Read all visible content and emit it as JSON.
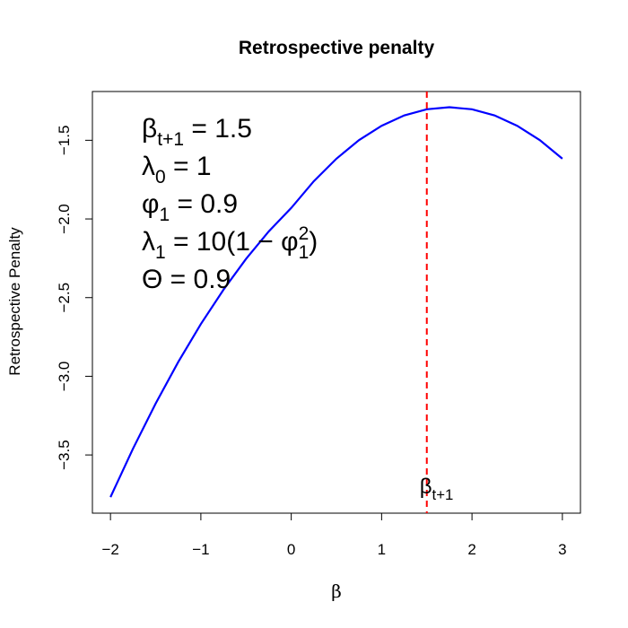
{
  "chart_data": {
    "type": "line",
    "title": "Retrospective penalty",
    "x_label": "β",
    "y_label": "Retrospective Penalty",
    "x": [
      -2,
      -1.75,
      -1.5,
      -1.25,
      -1,
      -0.75,
      -0.5,
      -0.25,
      0,
      0.25,
      0.5,
      0.75,
      1,
      1.25,
      1.5,
      1.75,
      2,
      2.25,
      2.5,
      2.75,
      3
    ],
    "series": [
      {
        "color": "#0000ff",
        "values": [
          -3.768,
          -3.459,
          -3.173,
          -2.909,
          -2.668,
          -2.45,
          -2.254,
          -2.08,
          -1.93,
          -1.76,
          -1.617,
          -1.499,
          -1.408,
          -1.342,
          -1.303,
          -1.29,
          -1.303,
          -1.342,
          -1.408,
          -1.499,
          -1.617
        ]
      }
    ],
    "xlim": [
      -2.2,
      3.2
    ],
    "ylim": [
      -3.87,
      -1.19
    ],
    "xticks": [
      {
        "value": -2,
        "label": "−2"
      },
      {
        "value": -1,
        "label": "−1"
      },
      0,
      1,
      2,
      3
    ],
    "yticks": [
      {
        "value": -1.5,
        "label": "−1.5"
      },
      {
        "value": -2,
        "label": "−2.0"
      },
      {
        "value": -2.5,
        "label": "−2.5"
      },
      {
        "value": -3,
        "label": "−3.0"
      },
      {
        "value": -3.5,
        "label": "−3.5"
      }
    ],
    "vline": {
      "x": 1.5,
      "color": "#ff0000",
      "label": [
        {
          "text": "β"
        },
        {
          "text": "t+1",
          "pos": "sub"
        }
      ]
    },
    "annotations": [
      {
        "color": "#0000ff",
        "segments": [
          {
            "text": "β"
          },
          {
            "text": "t+1",
            "pos": "sub"
          },
          {
            "text": " = 1.5"
          }
        ]
      },
      {
        "color": "#000000",
        "segments": [
          {
            "text": "λ"
          },
          {
            "text": "0",
            "pos": "sub"
          },
          {
            "text": " = 1"
          }
        ]
      },
      {
        "color": "#000000",
        "segments": [
          {
            "text": "φ"
          },
          {
            "text": "1",
            "pos": "sub"
          },
          {
            "text": " = 0.9"
          }
        ]
      },
      {
        "color": "#000000",
        "segments": [
          {
            "text": "λ"
          },
          {
            "text": "1",
            "pos": "sub"
          },
          {
            "text": " = 10(1 − φ"
          },
          {
            "text": "1",
            "pos": "sub"
          },
          {
            "text": "2",
            "pos": "supback"
          },
          {
            "text": ")"
          }
        ]
      },
      {
        "color": "#000000",
        "segments": [
          {
            "text": "Θ"
          },
          {
            "text": " = 0.9"
          }
        ]
      }
    ]
  }
}
